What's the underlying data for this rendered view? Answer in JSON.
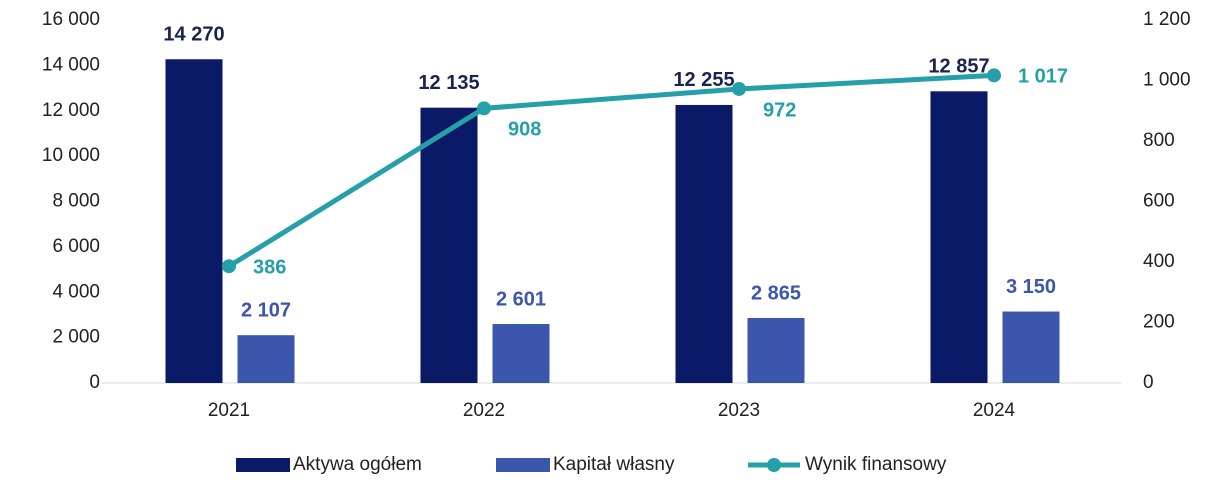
{
  "chart_data": {
    "type": "bar",
    "categories": [
      "2021",
      "2022",
      "2023",
      "2024"
    ],
    "series": [
      {
        "name": "Aktywa ogółem",
        "color": "#0b1a66",
        "type": "bar",
        "values": [
          14270,
          12135,
          12255,
          12857
        ],
        "value_labels": [
          "14 270",
          "12 135",
          "12 255",
          "12 857"
        ]
      },
      {
        "name": "Kapitał własny",
        "color": "#3c56ad",
        "type": "bar",
        "values": [
          2107,
          2601,
          2865,
          3150
        ],
        "value_labels": [
          "2 107",
          "2 601",
          "2 865",
          "3 150"
        ]
      },
      {
        "name": "Wynik finansowy",
        "color": "#26a0a8",
        "type": "line",
        "axis": "y2",
        "values": [
          386,
          908,
          972,
          1017
        ],
        "value_labels": [
          "386",
          "908",
          "972",
          "1 017"
        ]
      }
    ],
    "ylim": [
      0,
      16000
    ],
    "yticks": [
      0,
      {
        "value": 2000,
        "label": "2 000"
      },
      {
        "value": 4000,
        "label": "4 000"
      },
      {
        "value": 6000,
        "label": "6 000"
      },
      {
        "value": 8000,
        "label": "8 000"
      },
      {
        "value": 10000,
        "label": "10 000"
      },
      {
        "value": 12000,
        "label": "12 000"
      },
      {
        "value": 14000,
        "label": "14 000"
      },
      {
        "value": 16000,
        "label": "16 000"
      }
    ],
    "y2lim": [
      0,
      1200
    ],
    "y2ticks": [
      0,
      200,
      400,
      600,
      800,
      {
        "value": 1000,
        "label": "1 000"
      },
      {
        "value": 1200,
        "label": "1 200"
      }
    ],
    "grid": false,
    "legend": "bottom"
  }
}
